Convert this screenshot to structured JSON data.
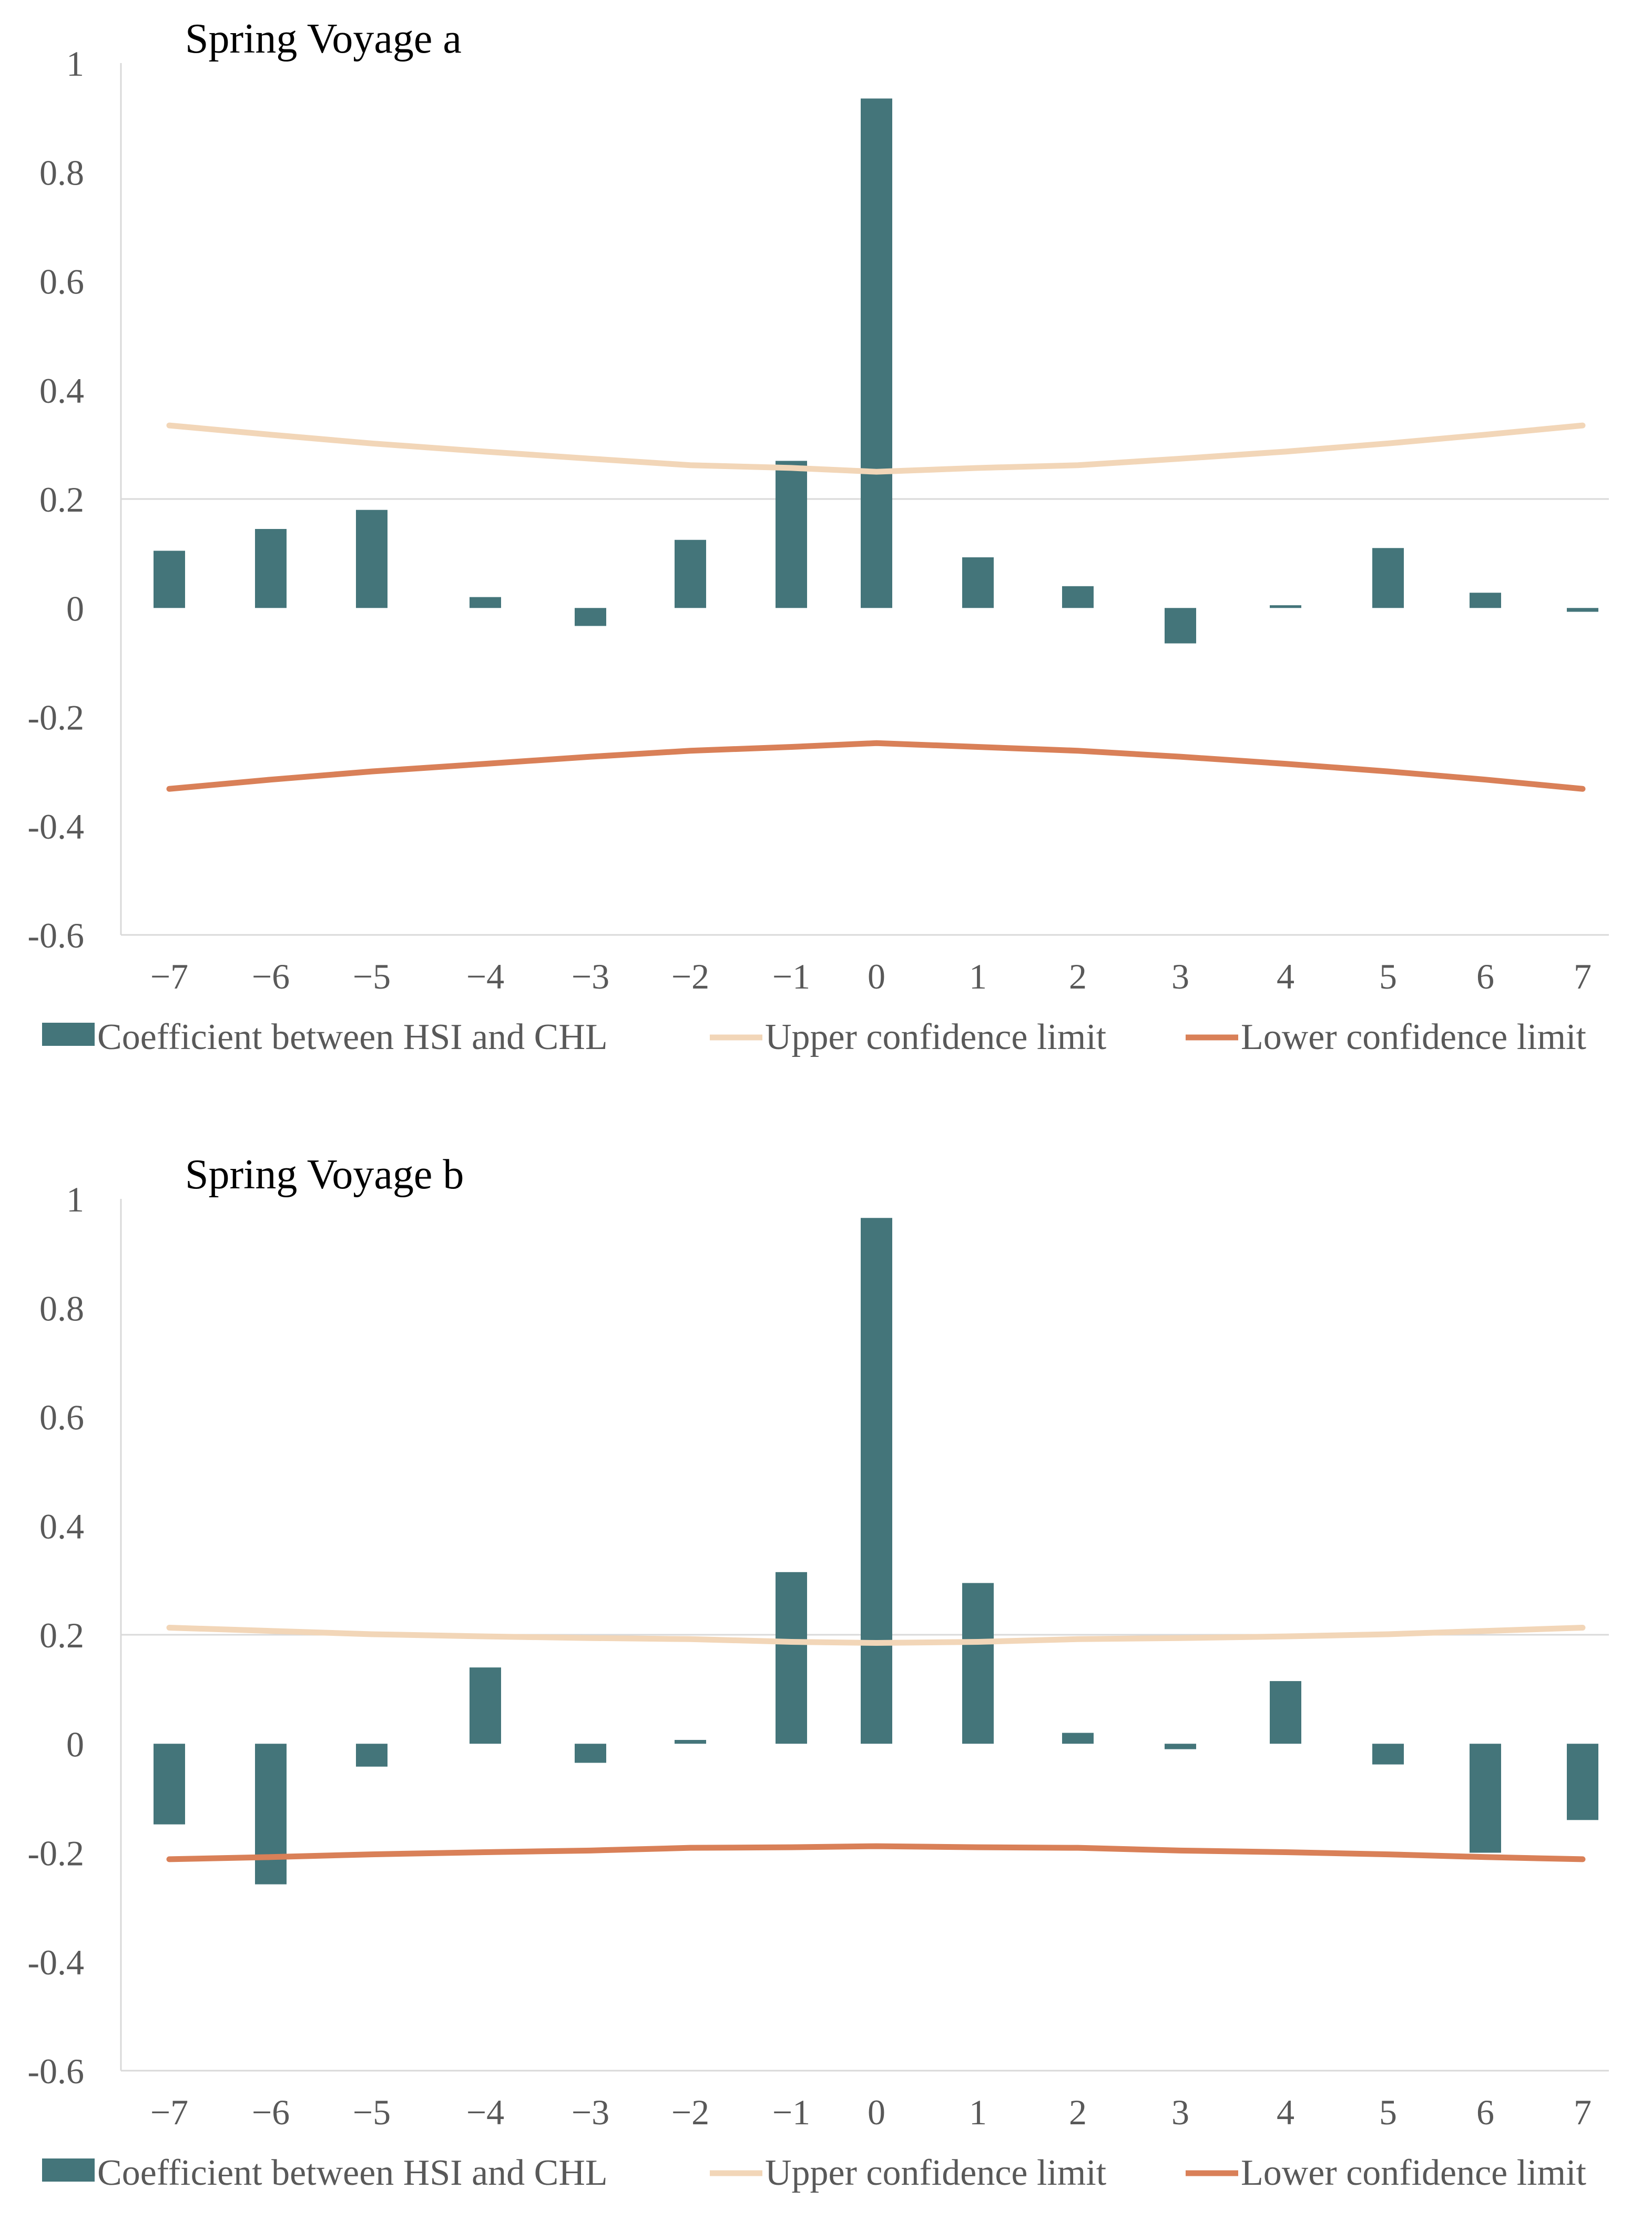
{
  "colors": {
    "bar": "#44757A",
    "upper": "#F2D6B8",
    "lower": "#D98058",
    "grid": "#D9D9D9",
    "axis": "#D9D9D9",
    "text": "#595959"
  },
  "chart_data": [
    {
      "type": "bar",
      "title": "Spring Voyage a",
      "categories": [
        "−7",
        "−6",
        "−5",
        "−4",
        "−3",
        "−2",
        "−1",
        "0",
        "1",
        "2",
        "3",
        "4",
        "5",
        "6",
        "7"
      ],
      "ylim": [
        -0.6,
        1
      ],
      "yticks": [
        "1",
        "0.8",
        "0.6",
        "0.4",
        "0.2",
        "0",
        "-0.2",
        "-0.4",
        "-0.6"
      ],
      "ytick_values": [
        1,
        0.8,
        0.6,
        0.4,
        0.2,
        0,
        -0.2,
        -0.4,
        -0.6
      ],
      "grid": "horizontal line at 0.2",
      "legend_position": "bottom",
      "series": [
        {
          "name": "Coefficient between HSI and CHL",
          "kind": "bar",
          "values": [
            0.105,
            0.145,
            0.18,
            0.02,
            -0.033,
            0.125,
            0.27,
            0.935,
            0.093,
            0.04,
            -0.065,
            0.005,
            0.11,
            0.028,
            -0.007
          ]
        },
        {
          "name": "Upper confidence limit",
          "kind": "line",
          "values": [
            0.335,
            0.318,
            0.302,
            0.287,
            0.274,
            0.262,
            0.257,
            0.25,
            0.257,
            0.262,
            0.274,
            0.287,
            0.302,
            0.318,
            0.335
          ]
        },
        {
          "name": "Lower confidence limit",
          "kind": "line",
          "values": [
            -0.332,
            -0.315,
            -0.3,
            -0.286,
            -0.273,
            -0.262,
            -0.255,
            -0.248,
            -0.255,
            -0.262,
            -0.273,
            -0.286,
            -0.3,
            -0.315,
            -0.332
          ]
        }
      ]
    },
    {
      "type": "bar",
      "title": "Spring Voyage b",
      "categories": [
        "−7",
        "−6",
        "−5",
        "−4",
        "−3",
        "−2",
        "−1",
        "0",
        "1",
        "2",
        "3",
        "4",
        "5",
        "6",
        "7"
      ],
      "ylim": [
        -0.6,
        1
      ],
      "yticks": [
        "1",
        "0.8",
        "0.6",
        "0.4",
        "0.2",
        "0",
        "-0.2",
        "-0.4",
        "-0.6"
      ],
      "ytick_values": [
        1,
        0.8,
        0.6,
        0.4,
        0.2,
        0,
        -0.2,
        -0.4,
        -0.6
      ],
      "grid": "horizontal line at 0.2",
      "legend_position": "bottom",
      "series": [
        {
          "name": "Coefficient between HSI and CHL",
          "kind": "bar",
          "values": [
            -0.148,
            -0.258,
            -0.042,
            0.14,
            -0.035,
            0.007,
            0.315,
            0.965,
            0.295,
            0.02,
            -0.01,
            0.115,
            -0.038,
            -0.2,
            -0.14
          ]
        },
        {
          "name": "Upper confidence limit",
          "kind": "line",
          "values": [
            0.213,
            0.207,
            0.201,
            0.197,
            0.194,
            0.192,
            0.187,
            0.185,
            0.187,
            0.192,
            0.194,
            0.197,
            0.201,
            0.207,
            0.213
          ]
        },
        {
          "name": "Lower confidence limit",
          "kind": "line",
          "values": [
            -0.212,
            -0.208,
            -0.203,
            -0.199,
            -0.196,
            -0.191,
            -0.19,
            -0.188,
            -0.19,
            -0.191,
            -0.196,
            -0.199,
            -0.203,
            -0.208,
            -0.212
          ]
        }
      ]
    }
  ]
}
